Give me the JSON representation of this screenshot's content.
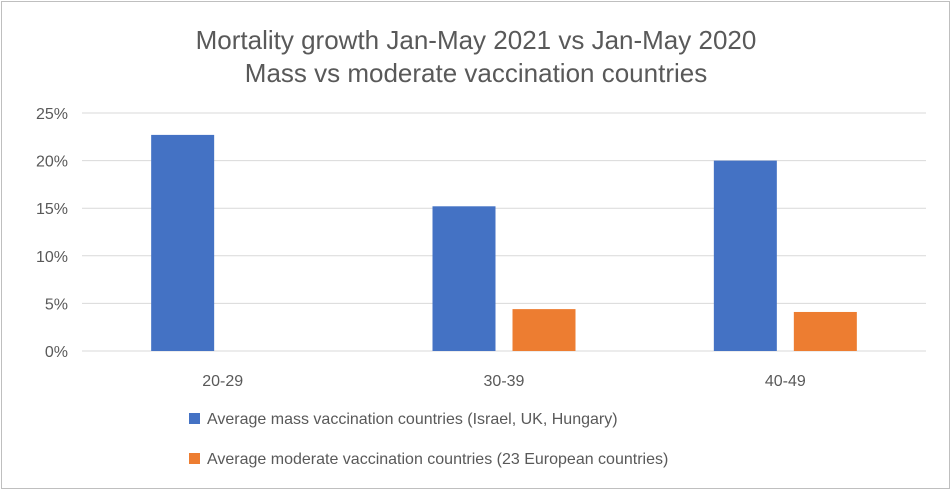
{
  "chart_data": {
    "type": "bar",
    "title": "Mortality growth Jan-May 2021 vs Jan-May 2020",
    "subtitle": "Mass vs moderate vaccination countries",
    "categories": [
      "20-29",
      "30-39",
      "40-49"
    ],
    "series": [
      {
        "name": "Average mass vaccination countries (Israel, UK, Hungary)",
        "color": "#4472c4",
        "values": [
          22.7,
          15.2,
          20.0
        ]
      },
      {
        "name": "Average moderate vaccination countries (23 European countries)",
        "color": "#ed7d31",
        "values": [
          null,
          4.4,
          4.1
        ]
      }
    ],
    "yticks": [
      "0%",
      "5%",
      "10%",
      "15%",
      "20%",
      "25%"
    ],
    "ylim": [
      0,
      25
    ],
    "grid": true,
    "legend_position": "bottom"
  }
}
